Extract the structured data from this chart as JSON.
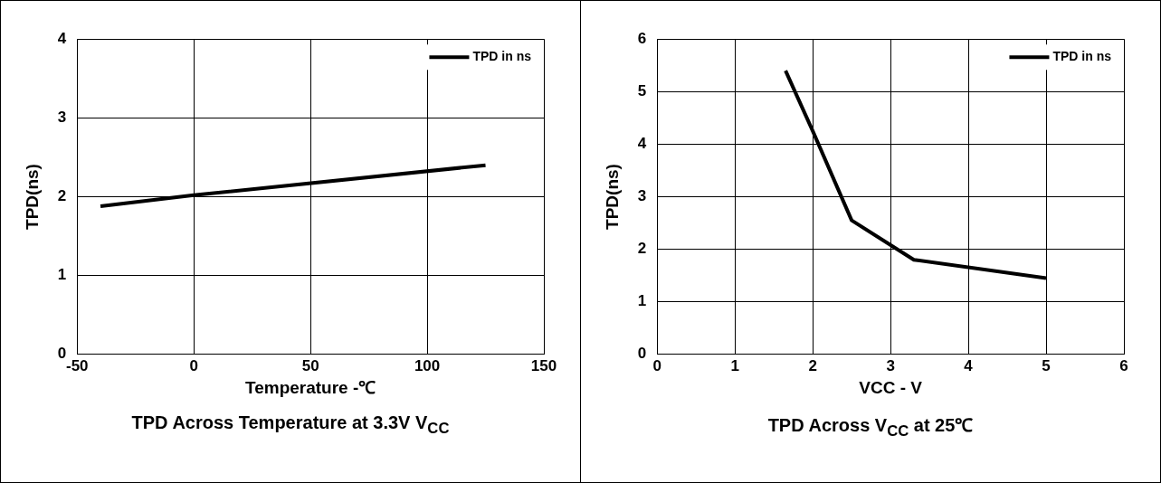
{
  "chart_data": [
    {
      "type": "line",
      "title": "TPD Across Temperature at 3.3V V$_{CC}$",
      "xlabel": "Temperature -℃",
      "ylabel": "TPD(ns)",
      "x": [
        -40,
        0,
        125
      ],
      "series": [
        {
          "name": "TPD in ns",
          "color": "#000000",
          "values": [
            1.88,
            2.02,
            2.4
          ]
        }
      ],
      "xlim": [
        -50,
        150
      ],
      "xticks": [
        -50,
        0,
        50,
        100,
        150
      ],
      "ylim": [
        0,
        4
      ],
      "yticks": [
        0,
        1,
        2,
        3,
        4
      ],
      "grid": true,
      "legend": "top right",
      "marker": "none"
    },
    {
      "type": "line",
      "title": "TPD Across V$_{CC}$ at 25℃",
      "xlabel": "VCC - V",
      "ylabel": "TPD(ns)",
      "x": [
        1.65,
        2,
        2.5,
        3.3,
        5
      ],
      "series": [
        {
          "name": "TPD in ns",
          "color": "#000000",
          "values": [
            5.4,
            4.25,
            2.55,
            1.8,
            1.45
          ]
        }
      ],
      "xlim": [
        0,
        6
      ],
      "xticks": [
        0,
        1,
        2,
        3,
        4,
        5,
        6
      ],
      "ylim": [
        0,
        6
      ],
      "yticks": [
        0,
        1,
        2,
        3,
        4,
        5,
        6
      ],
      "grid": true,
      "legend": "top right",
      "marker": "none"
    }
  ]
}
